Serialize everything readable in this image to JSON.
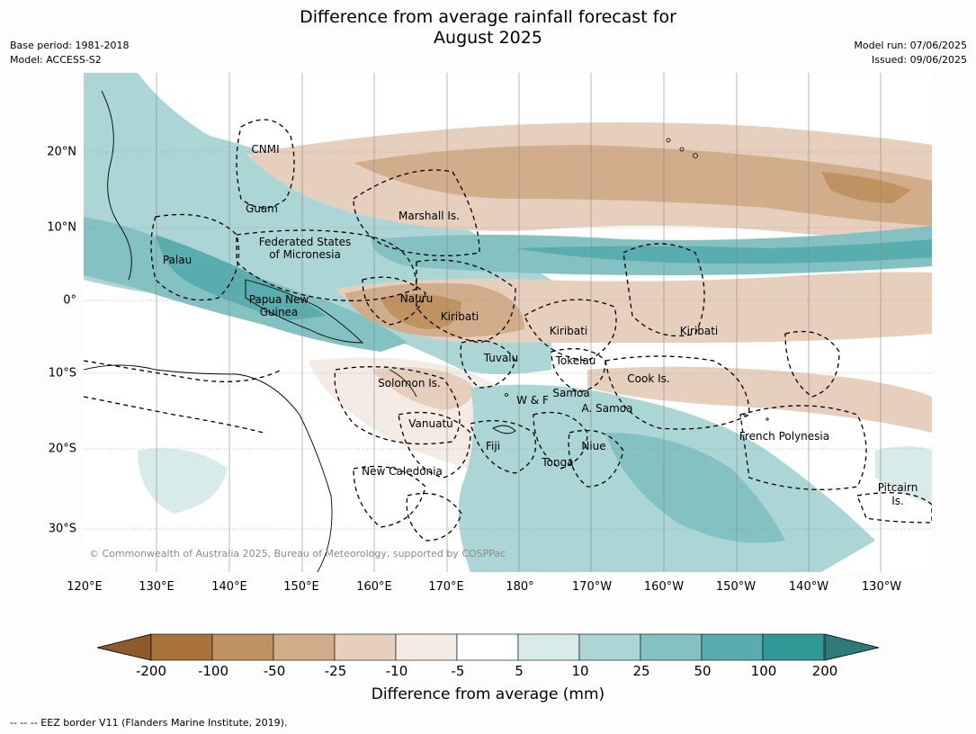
{
  "title": {
    "line1": "Difference from average rainfall forecast for",
    "line2": "August 2025"
  },
  "meta_left": {
    "base_period": "Base period: 1981-2018",
    "model": "Model: ACCESS-S2"
  },
  "meta_right": {
    "model_run": "Model run: 07/06/2025",
    "issued": "Issued: 09/06/2025"
  },
  "map": {
    "lon_range": [
      120,
      237
    ],
    "lat_range": [
      -36,
      31
    ],
    "lat_ticks": [
      "20°N",
      "10°N",
      "0°",
      "10°S",
      "20°S",
      "30°S"
    ],
    "lon_ticks": [
      "120°E",
      "130°E",
      "140°E",
      "150°E",
      "160°E",
      "170°E",
      "180°",
      "170°W",
      "160°W",
      "150°W",
      "140°W",
      "130°W"
    ],
    "labels": [
      {
        "text": "CNMI"
      },
      {
        "text": "Guam"
      },
      {
        "text": "Marshall Is."
      },
      {
        "text": "Federated States"
      },
      {
        "text": "of Micronesia"
      },
      {
        "text": "Palau"
      },
      {
        "text": "Papua New"
      },
      {
        "text": "Guinea"
      },
      {
        "text": "Nauru"
      },
      {
        "text": "Kiribati"
      },
      {
        "text": "Kiribati"
      },
      {
        "text": "Kiribati"
      },
      {
        "text": "Tuvalu"
      },
      {
        "text": "Tokelau"
      },
      {
        "text": "Solomon Is."
      },
      {
        "text": "Cook Is."
      },
      {
        "text": "W & F"
      },
      {
        "text": "Samoa"
      },
      {
        "text": "A. Samoa"
      },
      {
        "text": "Vanuatu"
      },
      {
        "text": "Fiji"
      },
      {
        "text": "Niue"
      },
      {
        "text": "French Polynesia"
      },
      {
        "text": "Tonga"
      },
      {
        "text": "New Caledonia"
      },
      {
        "text": "Pitcairn"
      },
      {
        "text": "Is."
      }
    ],
    "copyright": "© Commonwealth of Australia 2025, Bureau of Meteorology, supported by COSPPac"
  },
  "colorbar": {
    "title": "Difference from average (mm)",
    "ticks": [
      "-200",
      "-100",
      "-50",
      "-25",
      "-10",
      "-5",
      "5",
      "10",
      "25",
      "50",
      "100",
      "200"
    ],
    "colors": [
      "#a8733a",
      "#bf925f",
      "#d2ad8b",
      "#e6d0bd",
      "#f4ebe4",
      "#ffffff",
      "#d6ebea",
      "#abd6d5",
      "#84c1c2",
      "#5aadae",
      "#319898"
    ],
    "under_color": "#8c5a2b",
    "over_color": "#2d7a79"
  },
  "footnote": "--  --  -- EEZ border V11 (Flanders Marine Institute, 2019)."
}
